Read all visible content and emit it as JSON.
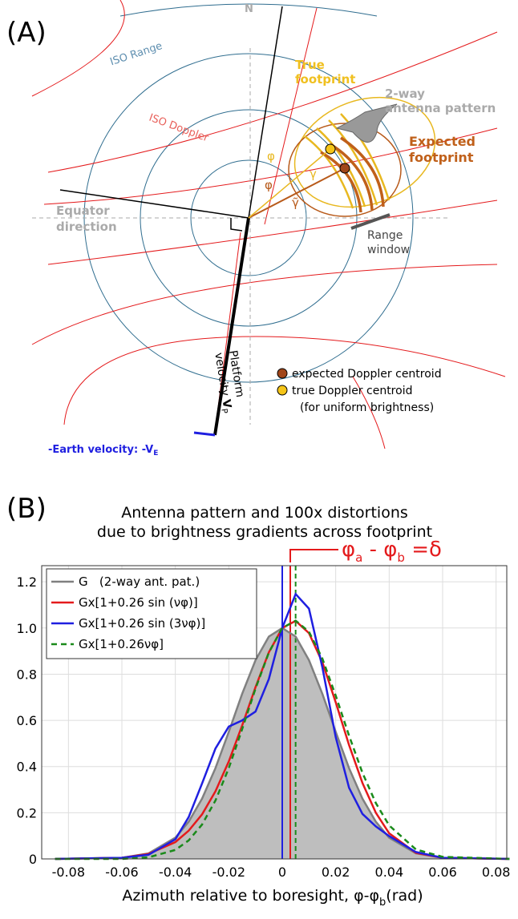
{
  "panel_a": {
    "label": "(A)",
    "north": "N",
    "iso_range": "ISO Range",
    "true_footprint": [
      "True",
      "footprint"
    ],
    "antenna_pattern": [
      "2-way",
      "antenna pattern"
    ],
    "iso_doppler": "ISO Doppler",
    "expected_footprint": [
      "Expected",
      "footprint"
    ],
    "phi_true": "φ",
    "phi_expected": "φ",
    "gamma": "γ",
    "gamma_tilde": "γ̃",
    "equator": [
      "Equator",
      "direction"
    ],
    "range_window": [
      "Range",
      "window"
    ],
    "platform_velocity": [
      "Platform",
      "velocity ",
      "V",
      "P"
    ],
    "earth_velocity": [
      "-Earth velocity: -V",
      "E"
    ],
    "legend": [
      "expected Doppler centroid",
      "true Doppler centroid",
      "(for uniform brightness)"
    ]
  },
  "panel_b_label": "(B)",
  "chart_data": {
    "type": "line",
    "title": [
      "Antenna pattern and 100x distortions",
      "due to brightness gradients across footprint"
    ],
    "annotation": [
      "φ",
      "a",
      " - φ",
      "b",
      " =δ"
    ],
    "xlabel": [
      "Azimuth relative to boresight, φ-φ",
      "b",
      "(rad)"
    ],
    "x": [
      -0.085,
      -0.06,
      -0.05,
      -0.04,
      -0.035,
      -0.03,
      -0.025,
      -0.02,
      -0.015,
      -0.01,
      -0.005,
      0,
      0.005,
      0.01,
      0.015,
      0.02,
      0.025,
      0.03,
      0.035,
      0.04,
      0.05,
      0.06,
      0.085
    ],
    "series": [
      {
        "name": "G   (2-way ant. pat.)",
        "color": "#808080",
        "fill": "#bebebe",
        "values": [
          0,
          0.005,
          0.024,
          0.092,
          0.161,
          0.261,
          0.393,
          0.55,
          0.715,
          0.861,
          0.963,
          1,
          0.963,
          0.861,
          0.715,
          0.55,
          0.393,
          0.261,
          0.161,
          0.092,
          0.024,
          0.005,
          0
        ]
      },
      {
        "name": "Gx[1+0.26 sin (νφ)]",
        "color": "#e41a1c",
        "values": [
          0,
          0.005,
          0.022,
          0.073,
          0.122,
          0.193,
          0.293,
          0.422,
          0.578,
          0.744,
          0.895,
          1,
          1.031,
          0.978,
          0.852,
          0.678,
          0.493,
          0.329,
          0.2,
          0.111,
          0.026,
          0.005,
          0
        ]
      },
      {
        "name": "Gx[1+0.26 sin (3νφ)]",
        "color": "#1f1fe0",
        "values": [
          0,
          0.005,
          0.018,
          0.085,
          0.181,
          0.327,
          0.478,
          0.573,
          0.6,
          0.638,
          0.779,
          1,
          1.147,
          1.084,
          0.83,
          0.527,
          0.308,
          0.195,
          0.141,
          0.099,
          0.03,
          0.005,
          0
        ]
      },
      {
        "name": "Gx[1+0.26νφ]",
        "color": "#1a8a1a",
        "dashed": true,
        "values": [
          0,
          0,
          0.007,
          0.039,
          0.08,
          0.149,
          0.253,
          0.393,
          0.562,
          0.738,
          0.894,
          1,
          1.032,
          0.984,
          0.868,
          0.707,
          0.534,
          0.373,
          0.242,
          0.145,
          0.041,
          0.009,
          0
        ]
      }
    ],
    "vlines": [
      {
        "x": 0,
        "color": "#1f1fe0"
      },
      {
        "x": 0.003,
        "color": "#e41a1c"
      },
      {
        "x": 0.005,
        "color": "#1a8a1a",
        "dashed": true
      }
    ],
    "xlim": [
      -0.09,
      0.084
    ],
    "ylim": [
      0,
      1.27
    ],
    "xticks": [
      -0.08,
      -0.06,
      -0.04,
      -0.02,
      0,
      0.02,
      0.04,
      0.06,
      0.08
    ],
    "yticks": [
      0,
      0.2,
      0.4,
      0.6,
      0.8,
      {
        "value": 1,
        "label": "1.0"
      },
      1.2
    ],
    "grid": true
  }
}
